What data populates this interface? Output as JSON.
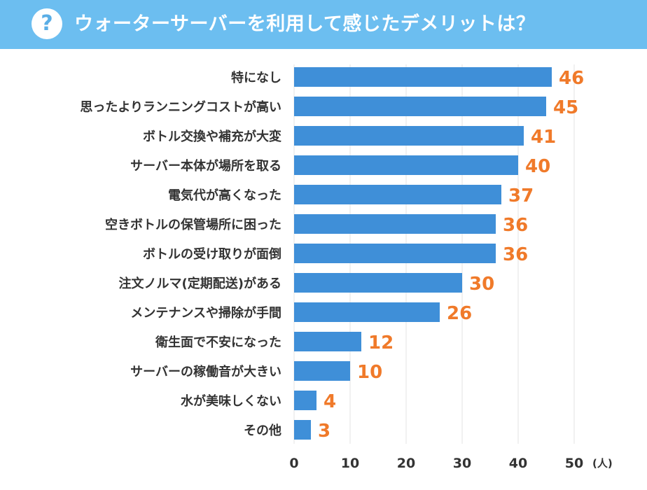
{
  "header": {
    "title": "ウォーターサーバーを利用して感じたデメリットは？",
    "badge_symbol": "?"
  },
  "colors": {
    "header_bg": "#6cbef0",
    "bar": "#3f8fd8",
    "value_text": "#f07a2a",
    "grid": "#e3e3e3"
  },
  "chart_data": {
    "type": "bar",
    "orientation": "horizontal",
    "title": "ウォーターサーバーを利用して感じたデメリットは？",
    "categories": [
      "特になし",
      "思ったよりランニングコストが高い",
      "ボトル交換や補充が大変",
      "サーバー本体が場所を取る",
      "電気代が高くなった",
      "空きボトルの保管場所に困った",
      "ボトルの受け取りが面倒",
      "注文ノルマ(定期配送)がある",
      "メンテナンスや掃除が手間",
      "衛生面で不安になった",
      "サーバーの稼働音が大きい",
      "水が美味しくない",
      "その他"
    ],
    "values": [
      46,
      45,
      41,
      40,
      37,
      36,
      36,
      30,
      26,
      12,
      10,
      4,
      3
    ],
    "xlim": [
      0,
      50
    ],
    "xticks": [
      0,
      10,
      20,
      30,
      40,
      50
    ],
    "xunit": "(人)",
    "xlabel": "",
    "ylabel": "",
    "grid": true,
    "legend": "none"
  }
}
